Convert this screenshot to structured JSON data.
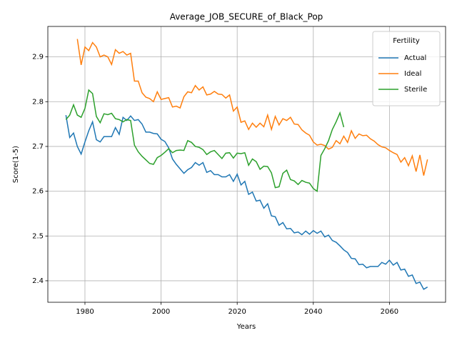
{
  "chart_data": {
    "type": "line",
    "title": "Average_JOB_SECURE_of_Black_Pop",
    "x_label": "Years",
    "y_label": "Score(1-5)",
    "x": [
      1975,
      1976,
      1977,
      1978,
      1979,
      1980,
      1981,
      1982,
      1983,
      1984,
      1985,
      1986,
      1987,
      1988,
      1989,
      1990,
      1991,
      1992,
      1993,
      1994,
      1995,
      1996,
      1997,
      1998,
      1999,
      2000,
      2001,
      2002,
      2003,
      2004,
      2005,
      2006,
      2007,
      2008,
      2009,
      2010,
      2011,
      2012,
      2013,
      2014,
      2015,
      2016,
      2017,
      2018,
      2019,
      2020,
      2021,
      2022,
      2023,
      2024,
      2025,
      2026,
      2027,
      2028,
      2029,
      2030,
      2031,
      2032,
      2033,
      2034,
      2035,
      2036,
      2037,
      2038,
      2039,
      2040,
      2041,
      2042,
      2043,
      2044,
      2045,
      2046,
      2047,
      2048,
      2049,
      2050,
      2051,
      2052,
      2053,
      2054,
      2055,
      2056,
      2057,
      2058,
      2059,
      2060,
      2061,
      2062,
      2063,
      2064,
      2065,
      2066,
      2067,
      2068,
      2069,
      2070
    ],
    "series": [
      {
        "name": "Actual",
        "color": "#1f77b4",
        "values": [
          2.77,
          2.72,
          2.73,
          2.7,
          2.683,
          2.71,
          2.735,
          2.755,
          2.715,
          2.71,
          2.722,
          2.722,
          2.722,
          2.742,
          2.727,
          2.765,
          2.758,
          2.768,
          2.758,
          2.76,
          2.75,
          2.732,
          2.732,
          2.729,
          2.728,
          2.716,
          2.711,
          2.697,
          2.672,
          2.66,
          2.65,
          2.64,
          2.648,
          2.653,
          2.664,
          2.658,
          2.664,
          2.642,
          2.646,
          2.637,
          2.637,
          2.632,
          2.632,
          2.637,
          2.622,
          2.638,
          2.614,
          2.622,
          2.593,
          2.598,
          2.578,
          2.58,
          2.562,
          2.572,
          2.545,
          2.543,
          2.524,
          2.53,
          2.516,
          2.517,
          2.507,
          2.509,
          2.503,
          2.511,
          2.504,
          2.512,
          2.506,
          2.511,
          2.498,
          2.502,
          2.49,
          2.486,
          2.478,
          2.469,
          2.463,
          2.45,
          2.449,
          2.436,
          2.437,
          2.429,
          2.432,
          2.432,
          2.432,
          2.441,
          2.437,
          2.446,
          2.435,
          2.441,
          2.424,
          2.426,
          2.41,
          2.413,
          2.394,
          2.397,
          2.381,
          2.386
        ]
      },
      {
        "name": "Ideal",
        "color": "#ff7f0e",
        "values": [
          null,
          null,
          null,
          2.94,
          2.882,
          2.922,
          2.914,
          2.932,
          2.922,
          2.9,
          2.904,
          2.9,
          2.883,
          2.916,
          2.908,
          2.912,
          2.904,
          2.908,
          2.846,
          2.846,
          2.82,
          2.81,
          2.807,
          2.8,
          2.822,
          2.805,
          2.807,
          2.809,
          2.788,
          2.79,
          2.786,
          2.811,
          2.822,
          2.82,
          2.836,
          2.826,
          2.833,
          2.815,
          2.817,
          2.823,
          2.817,
          2.816,
          2.808,
          2.815,
          2.779,
          2.788,
          2.754,
          2.757,
          2.738,
          2.752,
          2.743,
          2.752,
          2.744,
          2.77,
          2.738,
          2.767,
          2.748,
          2.762,
          2.758,
          2.765,
          2.75,
          2.749,
          2.737,
          2.73,
          2.725,
          2.71,
          2.703,
          2.705,
          2.702,
          2.694,
          2.698,
          2.713,
          2.706,
          2.723,
          2.709,
          2.735,
          2.718,
          2.728,
          2.724,
          2.725,
          2.717,
          2.712,
          2.704,
          2.699,
          2.697,
          2.691,
          2.686,
          2.682,
          2.665,
          2.675,
          2.657,
          2.679,
          2.644,
          2.681,
          2.635,
          2.671
        ]
      },
      {
        "name": "Sterile",
        "color": "#2ca02c",
        "values": [
          2.76,
          2.77,
          2.793,
          2.77,
          2.765,
          2.785,
          2.826,
          2.818,
          2.767,
          2.753,
          2.773,
          2.771,
          2.774,
          2.762,
          2.76,
          2.755,
          2.76,
          2.758,
          2.703,
          2.688,
          2.678,
          2.67,
          2.662,
          2.66,
          2.675,
          2.68,
          2.687,
          2.695,
          2.686,
          2.691,
          2.692,
          2.691,
          2.713,
          2.709,
          2.7,
          2.698,
          2.693,
          2.682,
          2.688,
          2.691,
          2.682,
          2.673,
          2.685,
          2.686,
          2.674,
          2.685,
          2.684,
          2.686,
          2.658,
          2.672,
          2.666,
          2.649,
          2.656,
          2.655,
          2.641,
          2.608,
          2.61,
          2.64,
          2.647,
          2.626,
          2.623,
          2.615,
          2.624,
          2.62,
          2.618,
          2.606,
          2.6,
          2.68,
          2.695,
          2.713,
          2.738,
          2.755,
          2.775,
          2.743,
          null,
          null,
          null,
          null,
          null,
          null,
          null,
          null,
          null,
          null,
          null,
          null,
          null,
          null,
          null,
          null,
          null,
          null,
          null,
          null,
          null,
          null
        ]
      }
    ],
    "xlim": [
      1970.25,
      2074.75
    ],
    "xticks": [
      1980,
      2000,
      2020,
      2040,
      2060
    ],
    "ylim": [
      2.352,
      2.968
    ],
    "yticks": [
      2.4,
      2.5,
      2.6,
      2.7,
      2.8,
      2.9
    ],
    "grid": true,
    "legend_title": "Fertility",
    "legend_loc": "upper right"
  }
}
